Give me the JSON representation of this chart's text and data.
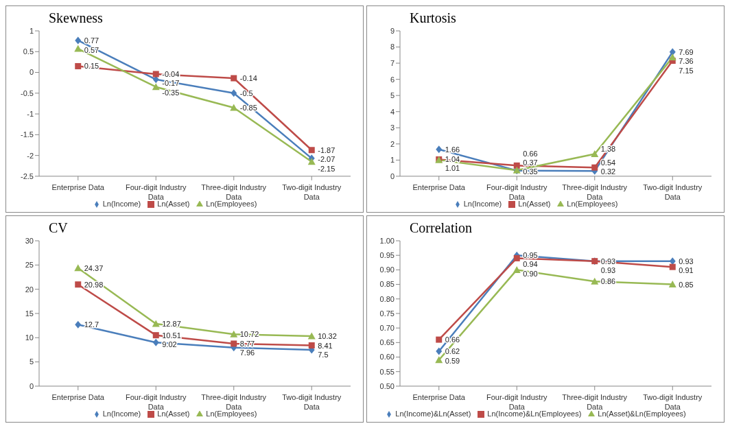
{
  "chart_data": [
    {
      "type": "line",
      "title": "Skewness",
      "categories": [
        "Enterprise Data",
        "Four-digit Industry Data",
        "Three-digit Industry Data",
        "Two-digit Industry Data"
      ],
      "ylim": [
        -2.5,
        1
      ],
      "yticks": [
        -2.5,
        -2,
        -1.5,
        -1,
        -0.5,
        0,
        0.5,
        1
      ],
      "legend": "bottom",
      "series": [
        {
          "name": "Ln(Income)",
          "color": "#4a7ebb",
          "marker": "diamond",
          "values": [
            0.77,
            -0.17,
            -0.5,
            -2.07
          ],
          "value_labels": [
            "0.77",
            "-0.17",
            "-0.5",
            "-2.07"
          ]
        },
        {
          "name": "Ln(Asset)",
          "color": "#be4b48",
          "marker": "square",
          "values": [
            0.15,
            -0.04,
            -0.14,
            -1.87
          ],
          "value_labels": [
            "0.15",
            "-0.04",
            "-0.14",
            "-1.87"
          ]
        },
        {
          "name": "Ln(Employees)",
          "color": "#98b954",
          "marker": "triangle",
          "values": [
            0.57,
            -0.35,
            -0.85,
            -2.15
          ],
          "value_labels": [
            "0.57",
            "-0.35",
            "-0.85",
            "-2.15"
          ]
        }
      ]
    },
    {
      "type": "line",
      "title": "Kurtosis",
      "categories": [
        "Enterprise Data",
        "Four-digit Industry Data",
        "Three-digit Industry Data",
        "Two-digit Industry Data"
      ],
      "ylim": [
        0,
        9
      ],
      "yticks": [
        0,
        1,
        2,
        3,
        4,
        5,
        6,
        7,
        8,
        9
      ],
      "legend": "bottom",
      "series": [
        {
          "name": "Ln(Income)",
          "color": "#4a7ebb",
          "marker": "diamond",
          "values": [
            1.66,
            0.35,
            0.32,
            7.69
          ],
          "value_labels": [
            "1.66",
            "0.35",
            "0.32",
            "7.69"
          ]
        },
        {
          "name": "Ln(Asset)",
          "color": "#be4b48",
          "marker": "square",
          "values": [
            1.04,
            0.66,
            0.54,
            7.15
          ],
          "value_labels": [
            "1.04",
            "0.66",
            "0.54",
            "7.15"
          ]
        },
        {
          "name": "Ln(Employees)",
          "color": "#98b954",
          "marker": "triangle",
          "values": [
            1.01,
            0.37,
            1.38,
            7.36
          ],
          "value_labels": [
            "1.01",
            "0.37",
            "1.38",
            "7.36"
          ]
        }
      ]
    },
    {
      "type": "line",
      "title": "CV",
      "categories": [
        "Enterprise Data",
        "Four-digit Industry Data",
        "Three-digit Industry Data",
        "Two-digit Industry Data"
      ],
      "ylim": [
        0,
        30
      ],
      "yticks": [
        0,
        5,
        10,
        15,
        20,
        25,
        30
      ],
      "legend": "bottom",
      "series": [
        {
          "name": "Ln(Income)",
          "color": "#4a7ebb",
          "marker": "diamond",
          "values": [
            12.7,
            9.02,
            7.96,
            7.5
          ],
          "value_labels": [
            "12.7",
            "9.02",
            "7.96",
            "7.5"
          ]
        },
        {
          "name": "Ln(Asset)",
          "color": "#be4b48",
          "marker": "square",
          "values": [
            20.98,
            10.51,
            8.77,
            8.41
          ],
          "value_labels": [
            "20.98",
            "10.51",
            "8.77",
            "8.41"
          ]
        },
        {
          "name": "Ln(Employees)",
          "color": "#98b954",
          "marker": "triangle",
          "values": [
            24.37,
            12.87,
            10.72,
            10.32
          ],
          "value_labels": [
            "24.37",
            "12.87",
            "10.72",
            "10.32"
          ]
        }
      ]
    },
    {
      "type": "line",
      "title": "Correlation",
      "categories": [
        "Enterprise Data",
        "Four-digit Industry Data",
        "Three-digit Industry Data",
        "Two-digit Industry Data"
      ],
      "ylim": [
        0.5,
        1
      ],
      "yticks": [
        {
          "value": 0.5,
          "label": "0.50"
        },
        {
          "value": 0.55,
          "label": "0.55"
        },
        {
          "value": 0.6,
          "label": "0.60"
        },
        {
          "value": 0.65,
          "label": "0.65"
        },
        {
          "value": 0.7,
          "label": "0.70"
        },
        {
          "value": 0.75,
          "label": "0.75"
        },
        {
          "value": 0.8,
          "label": "0.80"
        },
        {
          "value": 0.85,
          "label": "0.85"
        },
        {
          "value": 0.9,
          "label": "0.90"
        },
        {
          "value": 0.95,
          "label": "0.95"
        },
        {
          "value": 1,
          "label": "1.00"
        }
      ],
      "legend": "bottom",
      "series": [
        {
          "name": "Ln(Income)&Ln(Asset)",
          "color": "#4a7ebb",
          "marker": "diamond",
          "values": [
            0.62,
            0.95,
            0.93,
            0.93
          ],
          "value_labels": [
            "0.62",
            "0.95",
            "0.93",
            "0.93"
          ]
        },
        {
          "name": "Ln(Income)&Ln(Employees)",
          "color": "#be4b48",
          "marker": "square",
          "values": [
            0.66,
            0.94,
            0.93,
            0.91
          ],
          "value_labels": [
            "0.66",
            "0.94",
            "0.93",
            "0.91"
          ]
        },
        {
          "name": "Ln(Asset)&Ln(Employees)",
          "color": "#98b954",
          "marker": "triangle",
          "values": [
            0.59,
            0.9,
            0.86,
            0.85
          ],
          "value_labels": [
            "0.59",
            "0.90",
            "0.86",
            "0.85"
          ]
        }
      ]
    }
  ]
}
